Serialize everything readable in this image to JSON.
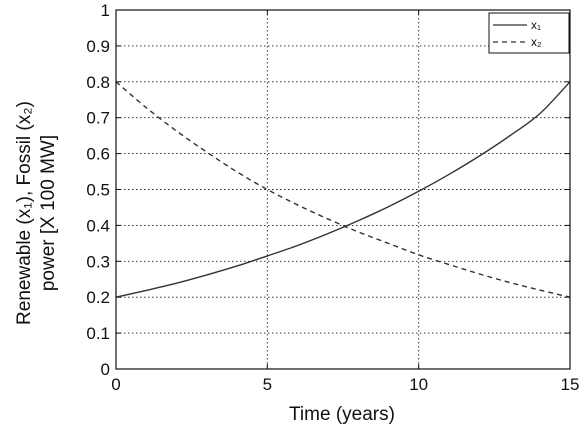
{
  "chart_data": {
    "type": "line",
    "xlabel": "Time (years)",
    "ylabel_line1": "Renewable (x₁), Fossil (x₂)",
    "ylabel_line2": "power [X 100 MW]",
    "xlim": [
      0,
      15
    ],
    "ylim": [
      0,
      1
    ],
    "xticks": [
      0,
      5,
      10,
      15
    ],
    "yticks": [
      0,
      0.1,
      0.2,
      0.3,
      0.4,
      0.5,
      0.6,
      0.7,
      0.8,
      0.9,
      1
    ],
    "xtick_labels": [
      "0",
      "5",
      "10",
      "15"
    ],
    "ytick_labels": [
      "0",
      "0.1",
      "0.2",
      "0.3",
      "0.4",
      "0.5",
      "0.6",
      "0.7",
      "0.8",
      "0.9",
      "1"
    ],
    "grid": true,
    "legend_position": "top-right",
    "x": [
      0,
      1,
      2,
      3,
      4,
      5,
      6,
      7,
      8,
      9,
      10,
      11,
      12,
      13,
      14,
      15
    ],
    "series": [
      {
        "name": "x₁",
        "style": "solid",
        "values": [
          0.2,
          0.219,
          0.239,
          0.262,
          0.287,
          0.315,
          0.344,
          0.377,
          0.413,
          0.452,
          0.495,
          0.542,
          0.593,
          0.649,
          0.711,
          0.8
        ]
      },
      {
        "name": "x₂",
        "style": "dashed",
        "values": [
          0.8,
          0.728,
          0.663,
          0.604,
          0.549,
          0.5,
          0.457,
          0.418,
          0.382,
          0.35,
          0.318,
          0.291,
          0.265,
          0.241,
          0.22,
          0.2
        ]
      }
    ],
    "colors": {
      "line": "#333333",
      "grid": "#222222",
      "axis": "#111111"
    }
  }
}
